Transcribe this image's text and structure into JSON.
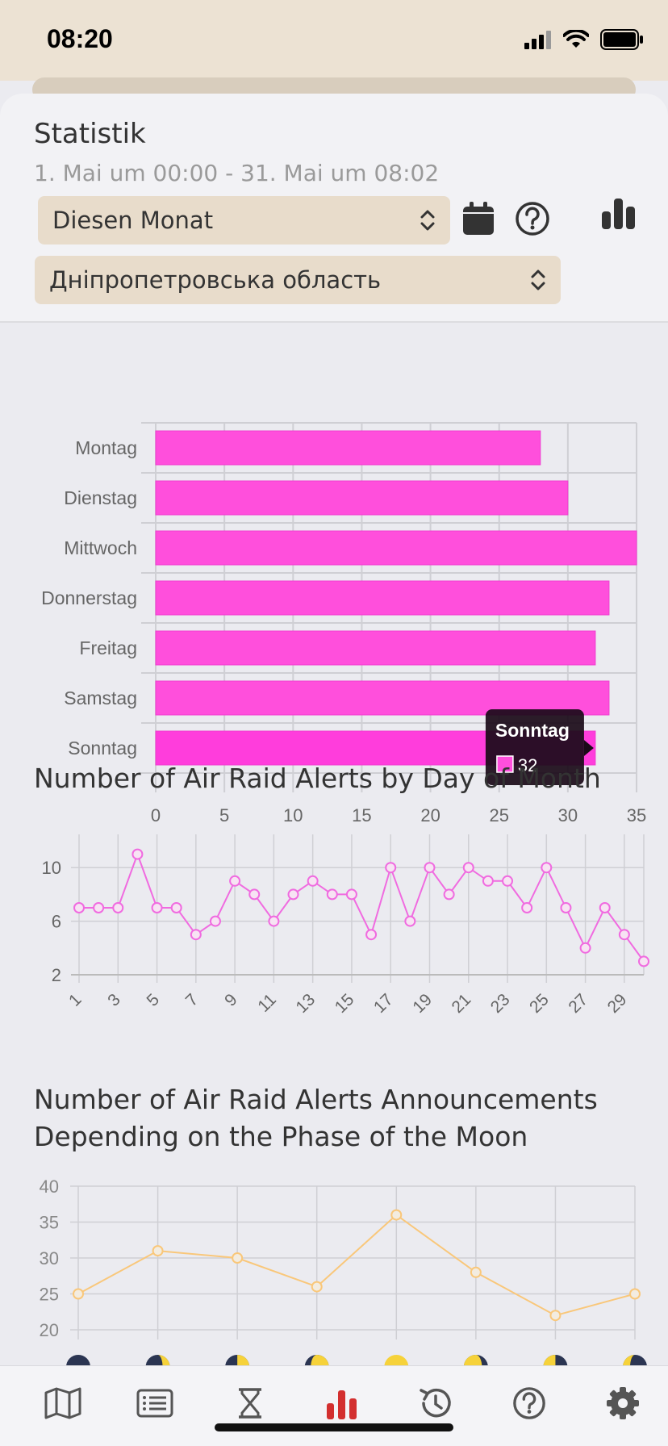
{
  "status_bar": {
    "time": "08:20"
  },
  "header": {
    "title": "Statistik",
    "date_range": "1. Mai um 00:00 - 31. Mai um 08:02",
    "period_select": "Diesen Monat",
    "region_select": "Дніпропетровська область"
  },
  "colors": {
    "accent_pink": "#ff4fdc",
    "line_pink": "#f06be0",
    "line_orange": "#f9c77a",
    "tan": "#e8dccb"
  },
  "chart_data": [
    {
      "type": "bar",
      "orientation": "horizontal",
      "categories": [
        "Montag",
        "Dienstag",
        "Mittwoch",
        "Donnerstag",
        "Freitag",
        "Samstag",
        "Sonntag"
      ],
      "values": [
        28,
        30,
        35,
        33,
        32,
        33,
        32
      ],
      "xlim": [
        0,
        35
      ],
      "xticks": [
        "0",
        "5",
        "10",
        "15",
        "20",
        "25",
        "30",
        "35"
      ],
      "tooltip": {
        "title": "Sonntag",
        "value": "32"
      }
    },
    {
      "type": "line",
      "title": "Number of Air Raid Alerts by Day of Month",
      "x": [
        1,
        2,
        3,
        4,
        5,
        6,
        7,
        8,
        9,
        10,
        11,
        12,
        13,
        14,
        15,
        16,
        17,
        18,
        19,
        20,
        21,
        22,
        23,
        24,
        25,
        26,
        27,
        28,
        29,
        30
      ],
      "values": [
        7,
        7,
        7,
        11,
        7,
        7,
        5,
        6,
        9,
        8,
        6,
        8,
        9,
        8,
        8,
        5,
        10,
        6,
        10,
        8,
        10,
        9,
        9,
        7,
        10,
        7,
        4,
        7,
        5,
        3
      ],
      "ylim": [
        2,
        12
      ],
      "yticks": [
        "2",
        "6",
        "10"
      ],
      "xticks": [
        "1",
        "3",
        "5",
        "7",
        "9",
        "11",
        "13",
        "15",
        "17",
        "19",
        "21",
        "23",
        "25",
        "27",
        "29"
      ]
    },
    {
      "type": "line",
      "title": "Number of Air Raid Alerts Announcements Depending on the Phase of the Moon",
      "categories": [
        "new-moon",
        "waxing-crescent",
        "first-quarter",
        "waxing-gibbous",
        "full-moon",
        "waning-gibbous",
        "last-quarter",
        "waning-crescent"
      ],
      "values": [
        25,
        31,
        30,
        26,
        36,
        28,
        22,
        25
      ],
      "ylim": [
        20,
        40
      ],
      "yticks": [
        "20",
        "25",
        "30",
        "35",
        "40"
      ]
    }
  ],
  "tabs": [
    {
      "name": "map-icon"
    },
    {
      "name": "list-icon"
    },
    {
      "name": "hourglass-icon"
    },
    {
      "name": "statistics-icon"
    },
    {
      "name": "history-icon"
    },
    {
      "name": "help-icon"
    },
    {
      "name": "settings-icon"
    }
  ]
}
